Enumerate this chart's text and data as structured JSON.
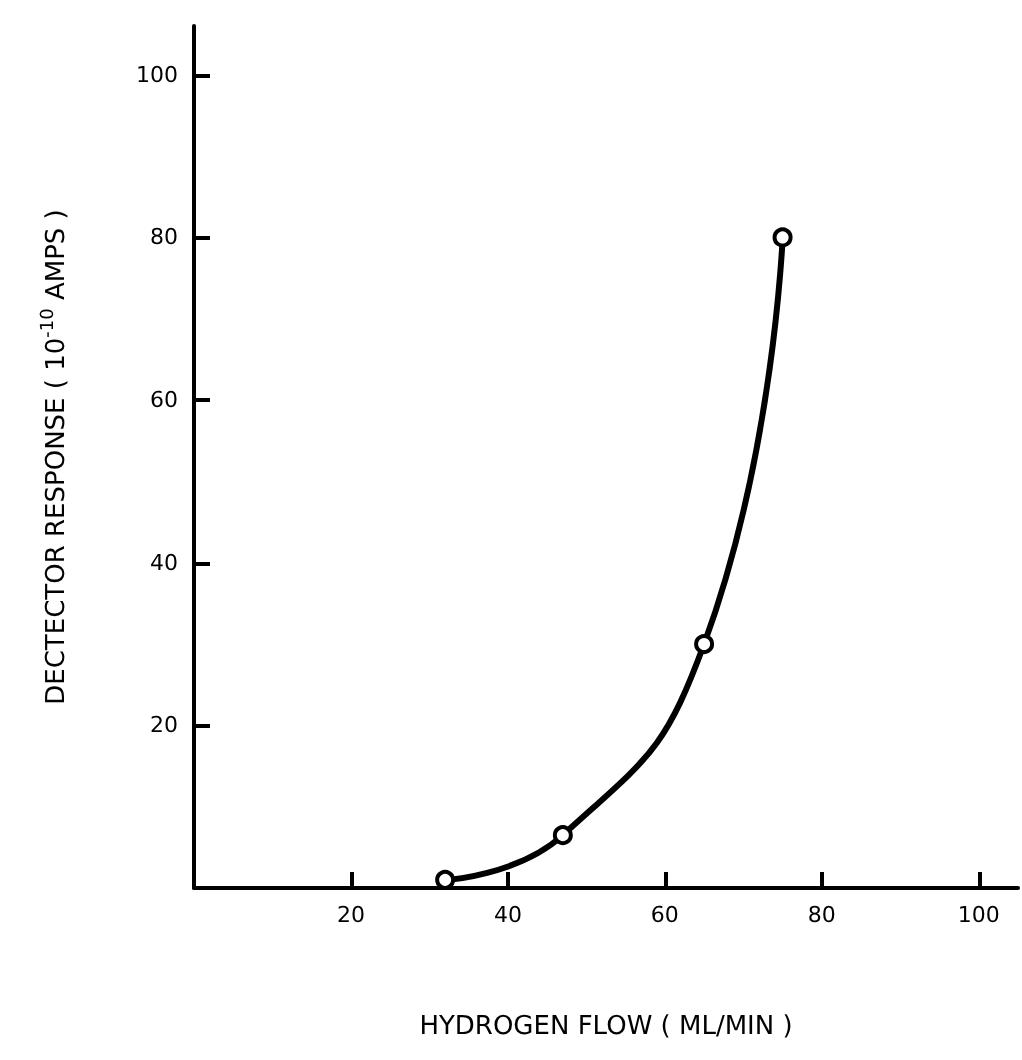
{
  "chart_data": {
    "type": "line",
    "xlabel": "HYDROGEN FLOW ( ML/MIN )",
    "ylabel": "DECTECTOR RESPONSE ( 10$^{-10}$ AMPS )",
    "x": [
      32,
      47,
      65,
      75
    ],
    "series": [
      {
        "color": "#000000",
        "values": [
          1,
          6.5,
          30,
          80
        ]
      }
    ],
    "xlim": [
      0,
      105
    ],
    "xticks": [
      20,
      40,
      60,
      80,
      100
    ],
    "ylim": [
      0,
      106
    ],
    "yticks": [
      20,
      40,
      60,
      80,
      100
    ],
    "marker": "circle",
    "line_style": "solid",
    "grid": false
  }
}
